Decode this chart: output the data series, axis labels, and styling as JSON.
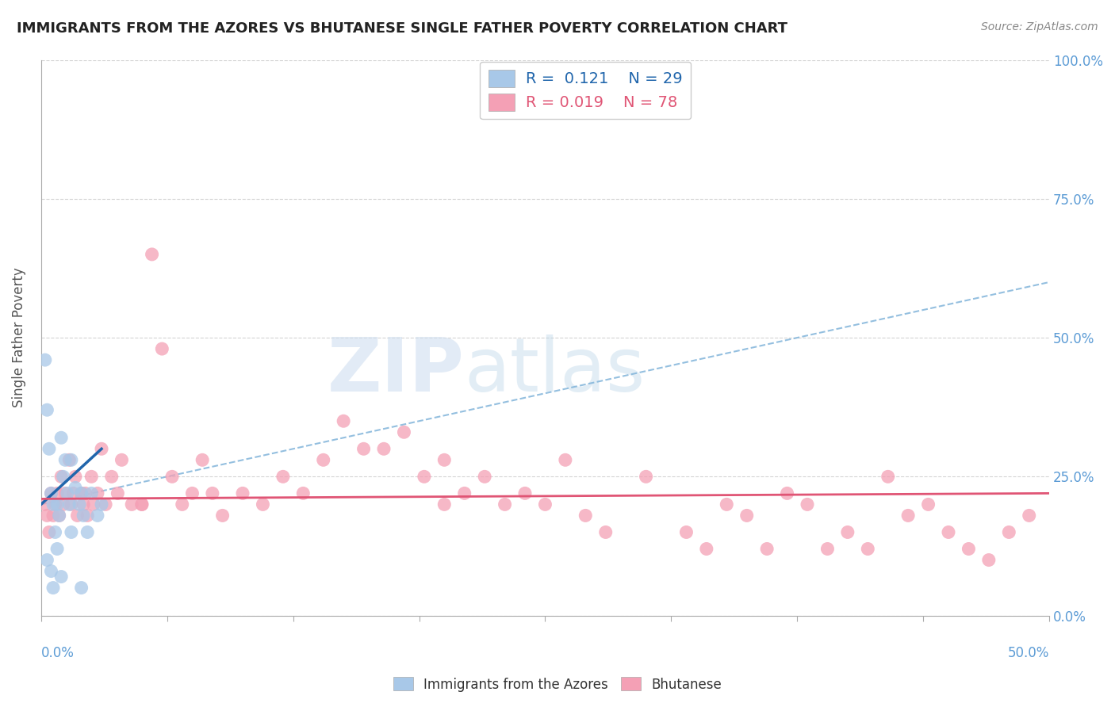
{
  "title": "IMMIGRANTS FROM THE AZORES VS BHUTANESE SINGLE FATHER POVERTY CORRELATION CHART",
  "source": "Source: ZipAtlas.com",
  "ylabel": "Single Father Poverty",
  "ytick_values": [
    0,
    25,
    50,
    75,
    100
  ],
  "xlim": [
    0,
    50
  ],
  "ylim": [
    0,
    100
  ],
  "legend_r1": "R =  0.121",
  "legend_n1": "N = 29",
  "legend_r2": "R = 0.019",
  "legend_n2": "N = 78",
  "blue_color": "#a8c8e8",
  "pink_color": "#f4a0b5",
  "blue_line_color": "#2166ac",
  "pink_line_color": "#e05575",
  "blue_dashed_color": "#7ab0d8",
  "watermark_zip": "ZIP",
  "watermark_atlas": "atlas",
  "background_color": "#ffffff",
  "grid_color": "#d0d0d0",
  "blue_scatter_x": [
    0.2,
    0.3,
    0.4,
    0.5,
    0.6,
    0.7,
    0.8,
    0.9,
    1.0,
    1.1,
    1.2,
    1.3,
    1.4,
    1.5,
    1.7,
    1.9,
    2.0,
    2.1,
    2.3,
    2.5,
    2.8,
    3.0,
    0.3,
    0.5,
    0.6,
    0.8,
    1.0,
    1.5,
    2.0
  ],
  "blue_scatter_y": [
    46,
    37,
    30,
    22,
    20,
    15,
    20,
    18,
    32,
    25,
    28,
    22,
    20,
    28,
    23,
    20,
    22,
    18,
    15,
    22,
    18,
    20,
    10,
    8,
    5,
    12,
    7,
    15,
    5
  ],
  "pink_scatter_x": [
    0.2,
    0.3,
    0.4,
    0.5,
    0.6,
    0.7,
    0.8,
    0.9,
    1.0,
    1.1,
    1.2,
    1.4,
    1.5,
    1.6,
    1.7,
    1.8,
    2.0,
    2.1,
    2.2,
    2.3,
    2.5,
    2.6,
    2.8,
    3.0,
    3.2,
    3.5,
    3.8,
    4.0,
    4.5,
    5.0,
    5.5,
    6.0,
    6.5,
    7.0,
    7.5,
    8.0,
    8.5,
    9.0,
    10.0,
    11.0,
    12.0,
    13.0,
    14.0,
    15.0,
    16.0,
    17.0,
    18.0,
    19.0,
    20.0,
    21.0,
    22.0,
    23.0,
    24.0,
    25.0,
    26.0,
    27.0,
    28.0,
    30.0,
    32.0,
    33.0,
    34.0,
    35.0,
    36.0,
    37.0,
    38.0,
    39.0,
    40.0,
    41.0,
    42.0,
    43.0,
    44.0,
    45.0,
    46.0,
    47.0,
    48.0,
    49.0,
    5.0,
    20.0
  ],
  "pink_scatter_y": [
    20,
    18,
    15,
    22,
    18,
    20,
    22,
    18,
    25,
    20,
    22,
    28,
    20,
    22,
    25,
    18,
    22,
    20,
    22,
    18,
    25,
    20,
    22,
    30,
    20,
    25,
    22,
    28,
    20,
    20,
    65,
    48,
    25,
    20,
    22,
    28,
    22,
    18,
    22,
    20,
    25,
    22,
    28,
    35,
    30,
    30,
    33,
    25,
    28,
    22,
    25,
    20,
    22,
    20,
    28,
    18,
    15,
    25,
    15,
    12,
    20,
    18,
    12,
    22,
    20,
    12,
    15,
    12,
    25,
    18,
    20,
    15,
    12,
    10,
    15,
    18,
    20,
    20
  ],
  "blue_trend_x": [
    0,
    50
  ],
  "blue_trend_y": [
    20,
    60
  ],
  "pink_trend_x": [
    0,
    50
  ],
  "pink_trend_y": [
    21,
    22
  ]
}
